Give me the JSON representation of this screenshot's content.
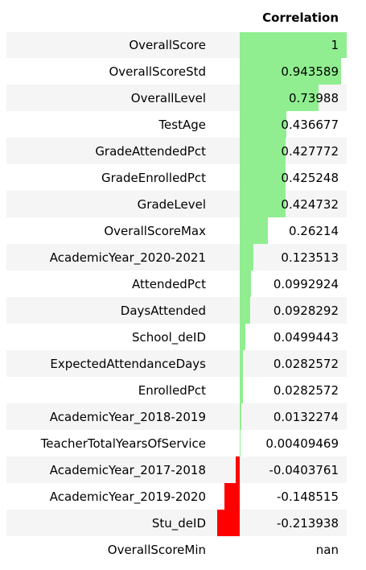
{
  "table": {
    "index_header": "",
    "column_header": "Correlation",
    "bar_colors": {
      "positive": "#90ee90",
      "negative": "#ff0000"
    },
    "rows": [
      {
        "label": "OverallScore",
        "value": 1,
        "display": "1"
      },
      {
        "label": "OverallScoreStd",
        "value": 0.943589,
        "display": "0.943589"
      },
      {
        "label": "OverallLevel",
        "value": 0.73988,
        "display": "0.73988"
      },
      {
        "label": "TestAge",
        "value": 0.436677,
        "display": "0.436677"
      },
      {
        "label": "GradeAttendedPct",
        "value": 0.427772,
        "display": "0.427772"
      },
      {
        "label": "GradeEnrolledPct",
        "value": 0.425248,
        "display": "0.425248"
      },
      {
        "label": "GradeLevel",
        "value": 0.424732,
        "display": "0.424732"
      },
      {
        "label": "OverallScoreMax",
        "value": 0.26214,
        "display": "0.26214"
      },
      {
        "label": "AcademicYear_2020-2021",
        "value": 0.123513,
        "display": "0.123513"
      },
      {
        "label": "AttendedPct",
        "value": 0.0992924,
        "display": "0.0992924"
      },
      {
        "label": "DaysAttended",
        "value": 0.0928292,
        "display": "0.0928292"
      },
      {
        "label": "School_deID",
        "value": 0.0499443,
        "display": "0.0499443"
      },
      {
        "label": "ExpectedAttendanceDays",
        "value": 0.0282572,
        "display": "0.0282572"
      },
      {
        "label": "EnrolledPct",
        "value": 0.0282572,
        "display": "0.0282572"
      },
      {
        "label": "AcademicYear_2018-2019",
        "value": 0.0132274,
        "display": "0.0132274"
      },
      {
        "label": "TeacherTotalYearsOfService",
        "value": 0.00409469,
        "display": "0.00409469"
      },
      {
        "label": "AcademicYear_2017-2018",
        "value": -0.0403761,
        "display": "-0.0403761"
      },
      {
        "label": "AcademicYear_2019-2020",
        "value": -0.148515,
        "display": "-0.148515"
      },
      {
        "label": "Stu_deID",
        "value": -0.213938,
        "display": "-0.213938"
      },
      {
        "label": "OverallScoreMin",
        "value": null,
        "display": "nan"
      }
    ]
  }
}
